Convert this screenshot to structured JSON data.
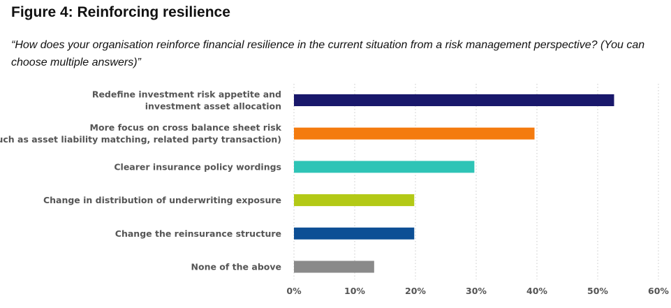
{
  "title": "Figure 4: Reinforcing resilience",
  "subtitle": "“How does your organisation reinforce financial resilience in the current situation from a risk management perspective? (You can choose multiple answers)”",
  "chart_data": {
    "type": "bar",
    "orientation": "horizontal",
    "categories": [
      [
        "Redefine investment risk appetite and",
        "investment asset allocation"
      ],
      [
        "More focus on cross balance sheet risk",
        "(such as asset liability matching, related party transaction)"
      ],
      [
        "Clearer insurance policy wordings"
      ],
      [
        "Change in distribution of underwriting exposure"
      ],
      [
        "Change the reinsurance structure"
      ],
      [
        "None of the above"
      ]
    ],
    "values": [
      52.7,
      39.6,
      29.7,
      19.8,
      19.8,
      13.2
    ],
    "colors": [
      "#19186b",
      "#f47b0f",
      "#2ec4b6",
      "#b3c916",
      "#0d4f95",
      "#8a8a8a"
    ],
    "xlim": [
      0,
      60
    ],
    "xticks": [
      0,
      10,
      20,
      30,
      40,
      50,
      60
    ],
    "tick_suffix": "%",
    "grid": "vertical-dotted"
  }
}
